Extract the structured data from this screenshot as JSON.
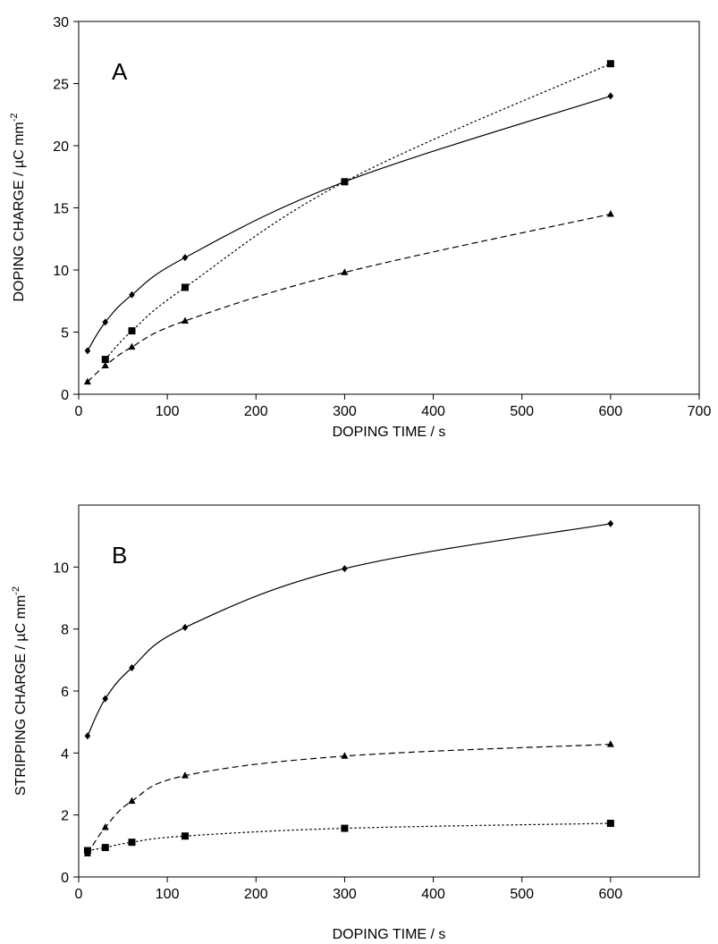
{
  "chart_data": [
    {
      "type": "line",
      "panel_label": "A",
      "xlabel": "DOPING TIME / s",
      "ylabel": "DOPING CHARGE / µC mm",
      "ylabel_superscript": "-2",
      "xlim": [
        0,
        700
      ],
      "ylim": [
        0,
        30
      ],
      "xticks": [
        0,
        100,
        200,
        300,
        400,
        500,
        600,
        700
      ],
      "yticks": [
        0,
        5,
        10,
        15,
        20,
        25,
        30
      ],
      "grid": false,
      "series": [
        {
          "marker": "diamond",
          "line_style": "solid",
          "x": [
            10,
            30,
            60,
            120,
            300,
            600
          ],
          "y": [
            3.5,
            5.8,
            8.0,
            11.0,
            17.1,
            24.0
          ]
        },
        {
          "marker": "square",
          "line_style": "dotted",
          "x": [
            30,
            60,
            120,
            300,
            600
          ],
          "y": [
            2.8,
            5.1,
            8.6,
            17.1,
            26.6
          ]
        },
        {
          "marker": "triangle",
          "line_style": "dashed",
          "x": [
            10,
            30,
            60,
            120,
            300,
            600
          ],
          "y": [
            1.0,
            2.3,
            3.8,
            5.9,
            9.8,
            14.5
          ]
        }
      ]
    },
    {
      "type": "line",
      "panel_label": "B",
      "xlabel": "DOPING TIME / s",
      "ylabel": "STRIPPING CHARGE / µC mm",
      "ylabel_superscript": "-2",
      "xlim": [
        0,
        700
      ],
      "ylim": [
        0,
        12
      ],
      "xticks": [
        0,
        100,
        200,
        300,
        400,
        500,
        600
      ],
      "yticks": [
        0,
        2,
        4,
        6,
        8,
        10
      ],
      "grid": false,
      "series": [
        {
          "marker": "diamond",
          "line_style": "solid",
          "x": [
            10,
            30,
            60,
            120,
            300,
            600
          ],
          "y": [
            4.55,
            5.75,
            6.75,
            8.05,
            9.95,
            11.4
          ]
        },
        {
          "marker": "triangle",
          "line_style": "dashed",
          "x": [
            10,
            30,
            60,
            120,
            300,
            600
          ],
          "y": [
            0.75,
            1.6,
            2.45,
            3.27,
            3.9,
            4.28
          ]
        },
        {
          "marker": "square",
          "line_style": "dotted",
          "x": [
            10,
            30,
            60,
            120,
            300,
            600
          ],
          "y": [
            0.85,
            0.95,
            1.12,
            1.32,
            1.57,
            1.73
          ]
        }
      ]
    }
  ]
}
